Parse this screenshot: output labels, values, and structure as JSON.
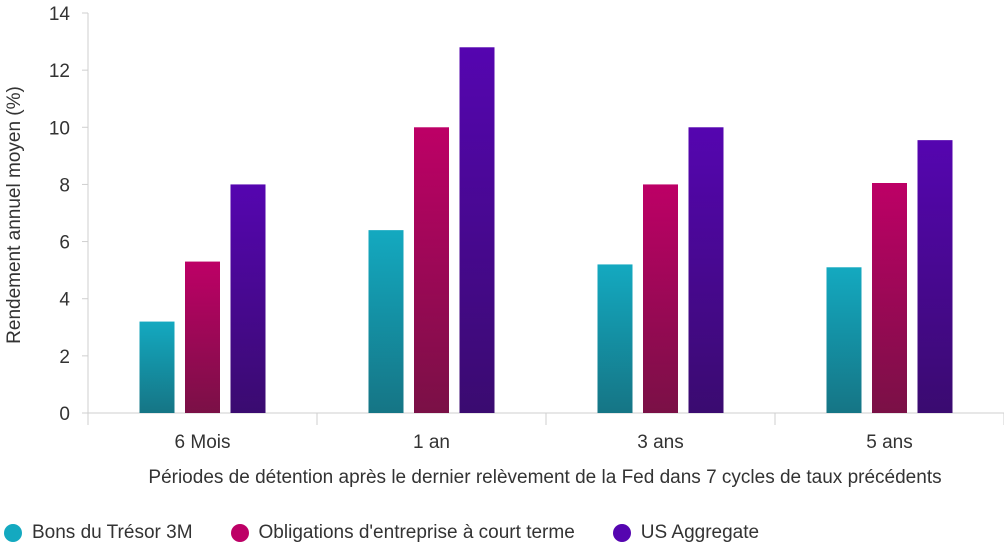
{
  "chart_data": {
    "type": "bar",
    "title": "",
    "xlabel": "Périodes de détention après le dernier relèvement de la Fed dans 7 cycles de taux précédents",
    "ylabel": "Rendement annuel moyen (%)",
    "ylim": [
      0,
      14
    ],
    "yticks": [
      0,
      2,
      4,
      6,
      8,
      10,
      12,
      14
    ],
    "grid": false,
    "categories": [
      "6 Mois",
      "1 an",
      "3 ans",
      "5 ans"
    ],
    "series": [
      {
        "name": "Bons du Trésor 3M",
        "values": [
          3.2,
          6.4,
          5.2,
          5.1
        ],
        "color_top": "#14a9c0",
        "color_bottom": "#157585"
      },
      {
        "name": "Obligations d'entreprise à court terme",
        "values": [
          5.3,
          10.0,
          8.0,
          8.05
        ],
        "color_top": "#bd0066",
        "color_bottom": "#7a1046"
      },
      {
        "name": "US Aggregate",
        "values": [
          8.0,
          12.8,
          10.0,
          9.55
        ],
        "color_top": "#5505b0",
        "color_bottom": "#3a0b70"
      }
    ],
    "legend_position": "bottom-left"
  }
}
